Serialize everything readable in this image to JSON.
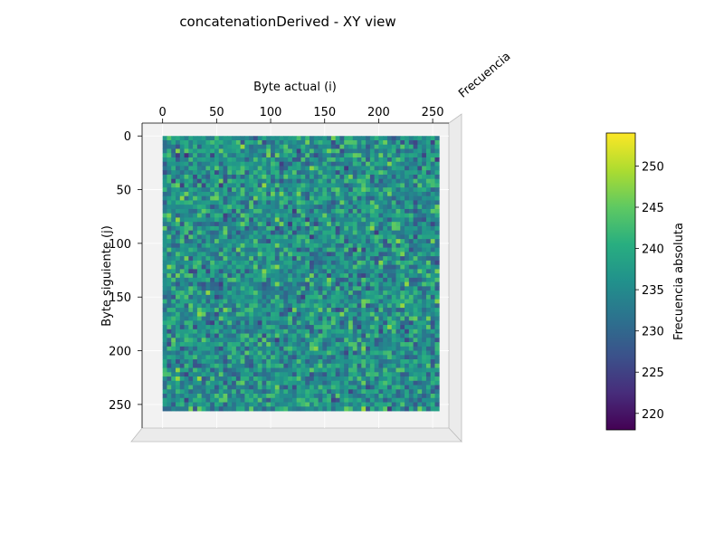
{
  "chart_data": {
    "type": "heatmap",
    "view": "XY view (3D surface seen from above)",
    "title": "concatenationDerived - XY view",
    "xlabel": "Byte actual (i)",
    "ylabel": "Byte siguiente (j)",
    "zlabel": "Frecuencia",
    "x_ticks": [
      0,
      50,
      100,
      150,
      200,
      250
    ],
    "y_ticks": [
      0,
      50,
      100,
      150,
      200,
      250
    ],
    "xlim": [
      -19,
      265
    ],
    "ylim": [
      -12,
      272
    ],
    "grid_size": 256,
    "value_range": [
      218,
      254
    ],
    "colorscale": "viridis",
    "colorbar": {
      "label": "Frecuencia absoluta",
      "ticks": [
        220,
        225,
        230,
        235,
        240,
        245,
        250
      ],
      "range": [
        218,
        254
      ]
    },
    "colors": {
      "pane": "#f2f2f2",
      "pane_edge": "#c8c8c8",
      "axis_text": "#000000"
    }
  }
}
